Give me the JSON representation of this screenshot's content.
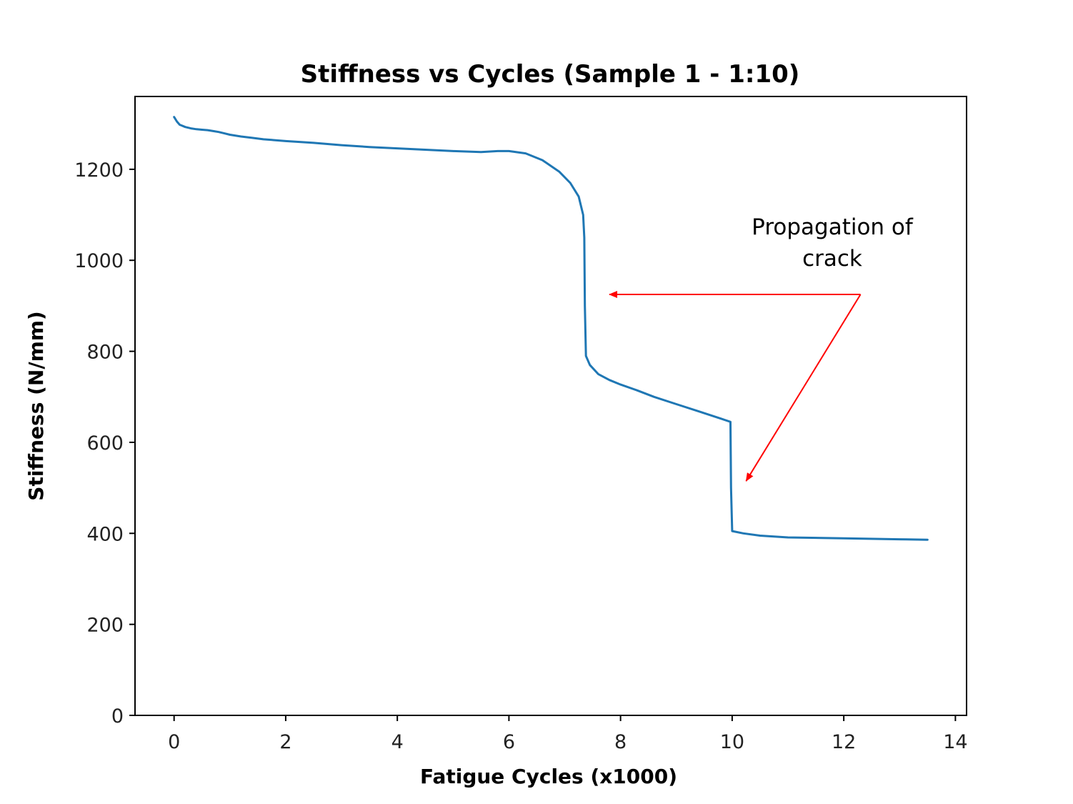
{
  "chart_data": {
    "type": "line",
    "title": "Stiffness vs Cycles (Sample 1 - 1:10)",
    "xlabel": "Fatigue Cycles (x1000)",
    "ylabel": "Stiffness (N/mm)",
    "xlim": [
      -0.7,
      14.2
    ],
    "ylim": [
      0,
      1360
    ],
    "xticks": [
      0,
      2,
      4,
      6,
      8,
      10,
      12,
      14
    ],
    "yticks": [
      0,
      200,
      400,
      600,
      800,
      1000,
      1200
    ],
    "grid": false,
    "series": [
      {
        "name": "Sample 1 - 1:10",
        "color": "#1f77b4",
        "x": [
          0.0,
          0.05,
          0.1,
          0.2,
          0.3,
          0.4,
          0.5,
          0.6,
          0.7,
          0.8,
          0.9,
          1.0,
          1.2,
          1.4,
          1.6,
          1.8,
          2.0,
          2.5,
          3.0,
          3.5,
          4.0,
          4.5,
          5.0,
          5.5,
          5.8,
          6.0,
          6.3,
          6.6,
          6.9,
          7.1,
          7.25,
          7.33,
          7.35,
          7.36,
          7.38,
          7.45,
          7.6,
          7.8,
          8.0,
          8.3,
          8.6,
          9.0,
          9.4,
          9.8,
          9.97,
          9.98,
          10.0,
          10.2,
          10.5,
          11.0,
          12.0,
          13.0,
          13.5
        ],
        "y": [
          1315,
          1305,
          1298,
          1293,
          1290,
          1288,
          1287,
          1286,
          1284,
          1282,
          1279,
          1276,
          1272,
          1269,
          1266,
          1264,
          1262,
          1258,
          1253,
          1249,
          1246,
          1243,
          1240,
          1238,
          1240,
          1240,
          1235,
          1220,
          1195,
          1170,
          1140,
          1100,
          1050,
          900,
          790,
          770,
          750,
          737,
          727,
          714,
          700,
          684,
          668,
          652,
          645,
          500,
          405,
          400,
          395,
          391,
          389,
          387,
          386
        ]
      }
    ],
    "annotations": [
      {
        "text_lines": [
          "Propagation of",
          "crack"
        ],
        "color": "#ff0000",
        "arrows": [
          {
            "from": [
              12.3,
              925
            ],
            "to": [
              7.8,
              925
            ]
          },
          {
            "from": [
              12.3,
              925
            ],
            "to": [
              10.25,
              515
            ]
          }
        ]
      }
    ]
  }
}
